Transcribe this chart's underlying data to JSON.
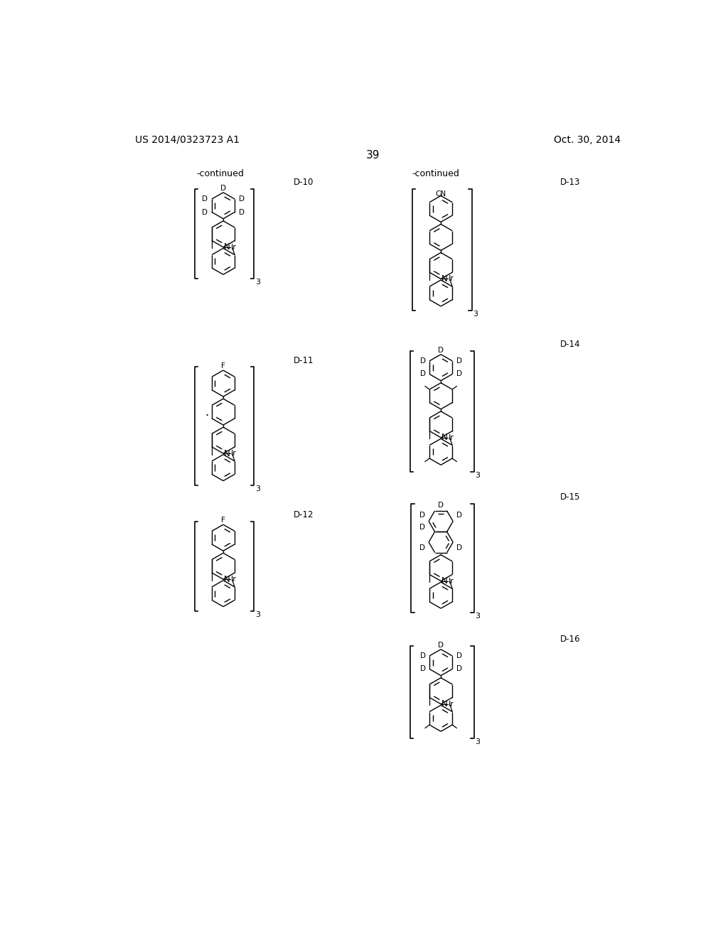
{
  "background_color": "#ffffff",
  "page_number": "39",
  "patent_number": "US 2014/0323723 A1",
  "patent_date": "Oct. 30, 2014",
  "continued_left": "-continued",
  "continued_right": "-continued"
}
